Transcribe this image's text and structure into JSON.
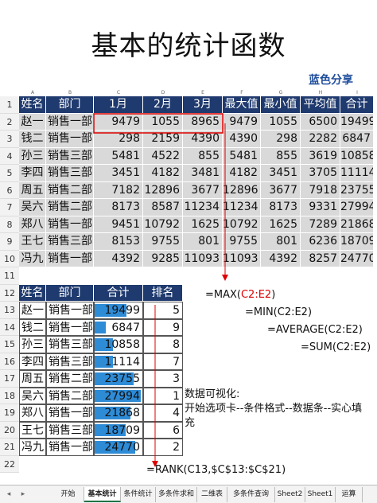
{
  "title": "基本的统计函数",
  "brand": "蓝色分享",
  "columns": [
    "A",
    "B",
    "C",
    "D",
    "E",
    "F",
    "G",
    "H",
    "I"
  ],
  "row_numbers": [
    "1",
    "2",
    "3",
    "4",
    "5",
    "6",
    "7",
    "8",
    "9",
    "10",
    "11",
    "12",
    "13",
    "14",
    "15",
    "16",
    "17",
    "18",
    "19",
    "20",
    "21",
    "22"
  ],
  "table1": {
    "headers": [
      "姓名",
      "部门",
      "1月",
      "2月",
      "3月",
      "最大值",
      "最小值",
      "平均值",
      "合计"
    ],
    "rows": [
      [
        "赵一",
        "销售一部",
        "9479",
        "1055",
        "8965",
        "9479",
        "1055",
        "6500",
        "19499"
      ],
      [
        "钱二",
        "销售一部",
        "298",
        "2159",
        "4390",
        "4390",
        "298",
        "2282",
        "6847"
      ],
      [
        "孙三",
        "销售三部",
        "5481",
        "4522",
        "855",
        "5481",
        "855",
        "3619",
        "10858"
      ],
      [
        "李四",
        "销售三部",
        "3451",
        "4182",
        "3481",
        "4182",
        "3451",
        "3705",
        "11114"
      ],
      [
        "周五",
        "销售二部",
        "7182",
        "12896",
        "3677",
        "12896",
        "3677",
        "7918",
        "23755"
      ],
      [
        "吴六",
        "销售二部",
        "8173",
        "8587",
        "11234",
        "11234",
        "8173",
        "9331",
        "27994"
      ],
      [
        "郑八",
        "销售一部",
        "9451",
        "10792",
        "1625",
        "10792",
        "1625",
        "7289",
        "21868"
      ],
      [
        "王七",
        "销售三部",
        "8153",
        "9755",
        "801",
        "9755",
        "801",
        "6236",
        "18709"
      ],
      [
        "冯九",
        "销售一部",
        "4392",
        "9285",
        "11093",
        "11093",
        "4392",
        "8257",
        "24770"
      ]
    ]
  },
  "table2": {
    "headers": [
      "姓名",
      "部门",
      "合计",
      "排名"
    ],
    "max_total": 27994,
    "rows": [
      {
        "name": "赵一",
        "dept": "销售一部",
        "total": "19499",
        "fill": 0.697,
        "rank": "5"
      },
      {
        "name": "钱二",
        "dept": "销售一部",
        "total": "6847",
        "fill": 0.245,
        "rank": "9"
      },
      {
        "name": "孙三",
        "dept": "销售三部",
        "total": "10858",
        "fill": 0.388,
        "rank": "8"
      },
      {
        "name": "李四",
        "dept": "销售三部",
        "total": "11114",
        "fill": 0.397,
        "rank": "7"
      },
      {
        "name": "周五",
        "dept": "销售二部",
        "total": "23755",
        "fill": 0.849,
        "rank": "3"
      },
      {
        "name": "吴六",
        "dept": "销售二部",
        "total": "27994",
        "fill": 1.0,
        "rank": "1"
      },
      {
        "name": "郑八",
        "dept": "销售一部",
        "total": "21868",
        "fill": 0.781,
        "rank": "4"
      },
      {
        "name": "王七",
        "dept": "销售三部",
        "total": "18709",
        "fill": 0.668,
        "rank": "6"
      },
      {
        "name": "冯九",
        "dept": "销售一部",
        "total": "24770",
        "fill": 0.885,
        "rank": "2"
      }
    ]
  },
  "formulas": {
    "max_prefix": "=MAX(",
    "max_ref": "C2:E2",
    "max_suffix": ")",
    "min": "=MIN(C2:E2)",
    "average": "=AVERAGE(C2:E2)",
    "sum": "=SUM(C2:E2)",
    "rank": "=RANK(C13,$C$13:$C$21)"
  },
  "note": {
    "line1": "数据可视化:",
    "line2": "开始选项卡--条件格式--数据条--实心填充"
  },
  "sheet_tabs": [
    "开始",
    "基本统计",
    "条件统计",
    "多条件求和",
    "二维表",
    "多条件查询",
    "Sheet2",
    "Sheet1",
    "运算"
  ],
  "active_tab": "基本统计",
  "nav": {
    "prev": "◂",
    "next": "▸"
  },
  "colors": {
    "header_bg": "#1f3a6e",
    "body_bg": "#d9d9d9",
    "data_bar": "#2e8bd6",
    "highlight": "#d00000",
    "brand": "#1f4e9c"
  }
}
